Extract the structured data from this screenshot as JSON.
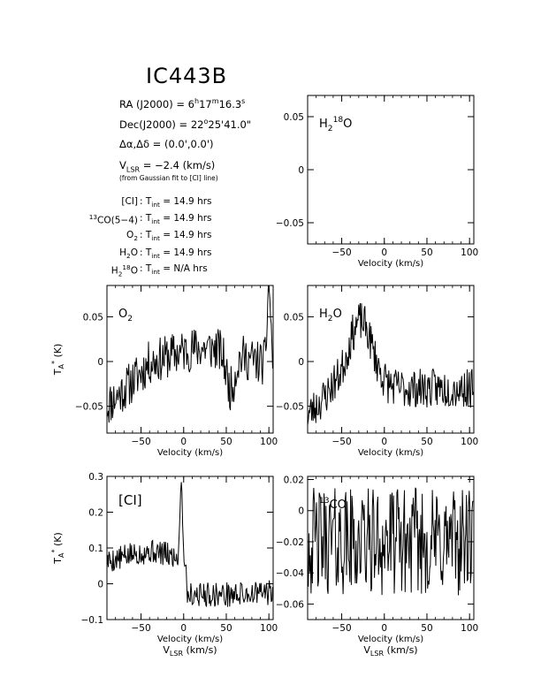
{
  "page": {
    "title": "IC443B",
    "info": {
      "ra_label": "RA (J2000) =",
      "ra_h": "6",
      "ra_m": "17",
      "ra_s": "16.3",
      "dec_label": "Dec(J2000) =",
      "dec_d": "22",
      "dec_rest": "25'41.0\"",
      "offset_label": "Δα,Δδ =",
      "offset_value": "(0.0',0.0')",
      "vlsr_label": "V",
      "vlsr_sub": "LSR",
      "vlsr_value": "= −2.4 (km/s)",
      "vlsr_note": "(from Gaussian fit to [CI] line)",
      "tint_lines": [
        {
          "pre": "",
          "sup": "",
          "mol": "[CI]",
          "sub": "",
          "tail": "",
          "tint": ": T",
          "tint_sub": "int",
          "value": "= 14.9 hrs"
        },
        {
          "pre": "",
          "sup": "13",
          "mol": "CO(5−4)",
          "sub": "",
          "tail": "",
          "tint": ": T",
          "tint_sub": "int",
          "value": "= 14.9 hrs"
        },
        {
          "pre": "",
          "sup": "",
          "mol": "O",
          "sub": "2",
          "tail": "",
          "tint": ": T",
          "tint_sub": "int",
          "value": "= 14.9 hrs"
        },
        {
          "pre": "",
          "sup": "",
          "mol": "H",
          "sub": "2",
          "tail": "O",
          "tint": ": T",
          "tint_sub": "int",
          "value": "= 14.9 hrs"
        },
        {
          "pre": "H",
          "sup": "18",
          "mol": "O",
          "sub": "2",
          "tail": "",
          "tint": ": T",
          "tint_sub": "int",
          "value": "= N/A hrs"
        }
      ]
    }
  },
  "chart_data": [
    {
      "id": "h218o",
      "type": "line",
      "label": "H",
      "label_sub": "2",
      "label_sup": "18",
      "label_tail": "O",
      "xlim": [
        -90,
        105
      ],
      "ylim": [
        -0.07,
        0.07
      ],
      "xticks": [
        -50,
        0,
        50,
        100
      ],
      "yticks": [
        0.05,
        0,
        -0.05
      ],
      "ytick_labels": [
        "0.05",
        "0",
        "−0.05"
      ],
      "xtick_labels": [
        "−50",
        "0",
        "50",
        "100"
      ],
      "xlabel": "Velocity (km/s)",
      "ylabel": "",
      "xlabel2": "",
      "generator": {
        "base": 0,
        "noise": 0,
        "features": []
      }
    },
    {
      "id": "o2",
      "type": "line",
      "label": "O",
      "label_sub": "2",
      "label_sup": "",
      "label_tail": "",
      "xlim": [
        -90,
        105
      ],
      "ylim": [
        -0.08,
        0.085
      ],
      "xticks": [
        -50,
        0,
        50,
        100
      ],
      "yticks": [
        0.05,
        0,
        -0.05
      ],
      "ytick_labels": [
        "0.05",
        "0",
        "−0.05"
      ],
      "xtick_labels": [
        "−50",
        "0",
        "50",
        "100"
      ],
      "xlabel": "Velocity (km/s)",
      "ylabel": "T_A* (K)",
      "xlabel2": "",
      "generator": {
        "base": -0.01,
        "noise": 0.025,
        "seed": 11,
        "features": [
          {
            "type": "ramp",
            "x0": -90,
            "x1": -40,
            "y0": -0.04,
            "y1": 0.0
          },
          {
            "type": "bump",
            "c": 25,
            "w": 45,
            "a": 0.025
          },
          {
            "type": "bump",
            "c": 55,
            "w": 5,
            "a": -0.04
          },
          {
            "type": "bump",
            "c": 100,
            "w": 2,
            "a": 0.09
          }
        ]
      }
    },
    {
      "id": "h2o",
      "type": "line",
      "label": "H",
      "label_sub": "2",
      "label_sup": "",
      "label_tail": "O",
      "xlim": [
        -90,
        105
      ],
      "ylim": [
        -0.08,
        0.085
      ],
      "xticks": [
        -50,
        0,
        50,
        100
      ],
      "yticks": [
        0.05,
        0,
        -0.05
      ],
      "ytick_labels": [
        "0.05",
        "0",
        "−0.05"
      ],
      "xtick_labels": [
        "−50",
        "0",
        "50",
        "100"
      ],
      "xlabel": "Velocity (km/s)",
      "ylabel": "",
      "xlabel2": "",
      "generator": {
        "base": -0.03,
        "noise": 0.022,
        "seed": 23,
        "features": [
          {
            "type": "bump",
            "c": -28,
            "w": 14,
            "a": 0.075
          },
          {
            "type": "ramp",
            "x0": -90,
            "x1": -60,
            "y0": -0.03,
            "y1": 0.0
          }
        ]
      }
    },
    {
      "id": "ci",
      "type": "line",
      "label": "[CI]",
      "label_sub": "",
      "label_sup": "",
      "label_tail": "",
      "xlim": [
        -90,
        105
      ],
      "ylim": [
        -0.1,
        0.3
      ],
      "xticks": [
        -50,
        0,
        50,
        100
      ],
      "yticks": [
        0.3,
        0.2,
        0.1,
        0,
        -0.1
      ],
      "ytick_labels": [
        "0.3",
        "0.2",
        "0.1",
        "0",
        "−0.1"
      ],
      "xtick_labels": [
        "−50",
        "0",
        "50",
        "100"
      ],
      "xlabel": "Velocity (km/s)",
      "ylabel": "T_A* (K)",
      "xlabel2": "V_LSR (km/s)",
      "generator": {
        "base": 0.06,
        "noise": 0.035,
        "seed": 5,
        "features": [
          {
            "type": "bump",
            "c": -40,
            "w": 25,
            "a": 0.03
          },
          {
            "type": "bump",
            "c": -3,
            "w": 1.4,
            "a": 0.23
          },
          {
            "type": "step",
            "x0": 3,
            "y": -0.09
          },
          {
            "type": "ramp",
            "x0": 60,
            "x1": 105,
            "y0": 0.0,
            "y1": 0.02
          }
        ]
      }
    },
    {
      "id": "13co",
      "type": "line",
      "label": "CO",
      "label_sub": "",
      "label_sup": "13",
      "label_tail": "",
      "xlim": [
        -90,
        105
      ],
      "ylim": [
        -0.07,
        0.022
      ],
      "xticks": [
        -50,
        0,
        50,
        100
      ],
      "yticks": [
        0.02,
        0,
        -0.02,
        -0.04,
        -0.06
      ],
      "ytick_labels": [
        "0.02",
        "0",
        "−0.02",
        "−0.04",
        "−0.06"
      ],
      "xtick_labels": [
        "−50",
        "0",
        "50",
        "100"
      ],
      "xlabel": "Velocity (km/s)",
      "ylabel": "",
      "xlabel2": "V_LSR (km/s)",
      "generator": {
        "base": -0.02,
        "noise": 0.035,
        "seed": 42,
        "features": []
      }
    }
  ]
}
